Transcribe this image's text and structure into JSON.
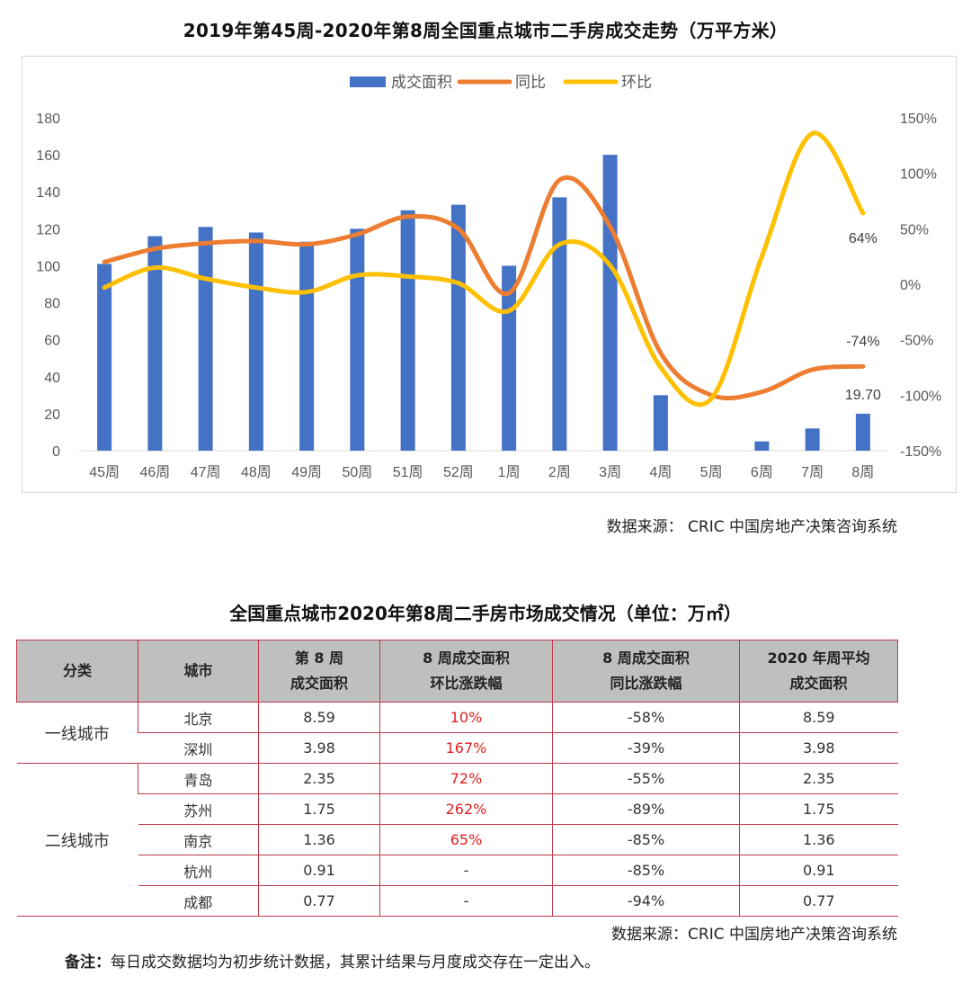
{
  "chart_data": {
    "type": "bar+line",
    "title": "2019年第45周-2020年第8周全国重点城市二手房成交走势（万平方米）",
    "categories": [
      "45周",
      "46周",
      "47周",
      "48周",
      "49周",
      "50周",
      "51周",
      "52周",
      "1周",
      "2周",
      "3周",
      "4周",
      "5周",
      "6周",
      "7周",
      "8周"
    ],
    "series": [
      {
        "name": "成交面积",
        "type": "bar",
        "axis": "left",
        "color": "#4472c4",
        "values": [
          101,
          116,
          121,
          118,
          113,
          120,
          130,
          133,
          100,
          137,
          160,
          30,
          0,
          5,
          12,
          20
        ]
      },
      {
        "name": "同比",
        "type": "line",
        "axis": "right",
        "color": "#ed7d31",
        "values": [
          20,
          32,
          37,
          39,
          36,
          45,
          61,
          50,
          -8,
          94,
          52,
          -62,
          -100,
          -97,
          -77,
          -74
        ]
      },
      {
        "name": "环比",
        "type": "line",
        "axis": "right",
        "color": "#ffc000",
        "values": [
          -3,
          15,
          5,
          -3,
          -7,
          8,
          7,
          1,
          -24,
          36,
          17,
          -75,
          -103,
          25,
          136,
          64
        ]
      }
    ],
    "left_axis": {
      "min": 0,
      "max": 180,
      "step": 20,
      "ticks": [
        "0",
        "20",
        "40",
        "60",
        "80",
        "100",
        "120",
        "140",
        "160",
        "180"
      ]
    },
    "right_axis": {
      "min": -150,
      "max": 150,
      "step": 50,
      "ticks": [
        "-150%",
        "-100%",
        "-50%",
        "0%",
        "50%",
        "100%",
        "150%"
      ]
    },
    "annotations": [
      "64%",
      "-74%",
      "19.70"
    ],
    "legend_position": "top-center"
  },
  "source1": "数据来源：   CRIC 中国房地产决策咨询系统",
  "table": {
    "title": "全国重点城市2020年第8周二手房市场成交情况（单位：万㎡）",
    "headers": [
      [
        "分类"
      ],
      [
        "城市"
      ],
      [
        "第 8 周",
        "成交面积"
      ],
      [
        "8 周成交面积",
        "环比涨跌幅"
      ],
      [
        "8 周成交面积",
        "同比涨跌幅"
      ],
      [
        "2020 年周平均",
        "成交面积"
      ]
    ],
    "groups": [
      {
        "category": "一线城市",
        "rows": [
          {
            "city": "北京",
            "area": "8.59",
            "mom": "10%",
            "yoy": "-58%",
            "avg": "8.59"
          },
          {
            "city": "深圳",
            "area": "3.98",
            "mom": "167%",
            "yoy": "-39%",
            "avg": "3.98"
          }
        ]
      },
      {
        "category": "二线城市",
        "rows": [
          {
            "city": "青岛",
            "area": "2.35",
            "mom": "72%",
            "yoy": "-55%",
            "avg": "2.35"
          },
          {
            "city": "苏州",
            "area": "1.75",
            "mom": "262%",
            "yoy": "-89%",
            "avg": "1.75"
          },
          {
            "city": "南京",
            "area": "1.36",
            "mom": "65%",
            "yoy": "-85%",
            "avg": "1.36"
          },
          {
            "city": "杭州",
            "area": "0.91",
            "mom": "-",
            "yoy": "-85%",
            "avg": "0.91"
          },
          {
            "city": "成都",
            "area": "0.77",
            "mom": "-",
            "yoy": "-94%",
            "avg": "0.77"
          }
        ]
      }
    ]
  },
  "source2": "数据来源：CRIC 中国房地产决策咨询系统",
  "note": {
    "label": "备注：",
    "text": "每日成交数据均为初步统计数据，其累计结果与月度成交存在一定出入。"
  }
}
